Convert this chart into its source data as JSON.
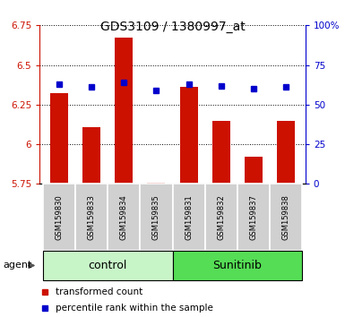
{
  "title": "GDS3109 / 1380997_at",
  "samples": [
    "GSM159830",
    "GSM159833",
    "GSM159834",
    "GSM159835",
    "GSM159831",
    "GSM159832",
    "GSM159837",
    "GSM159838"
  ],
  "red_values": [
    6.32,
    6.11,
    6.67,
    5.76,
    6.36,
    6.15,
    5.92,
    6.15
  ],
  "blue_values": [
    63,
    61,
    64,
    59,
    63,
    62,
    60,
    61
  ],
  "groups": [
    {
      "label": "control",
      "indices": [
        0,
        1,
        2,
        3
      ],
      "color": "#c8f5c8",
      "edge_color": "#000000"
    },
    {
      "label": "Sunitinib",
      "indices": [
        4,
        5,
        6,
        7
      ],
      "color": "#55dd55",
      "edge_color": "#000000"
    }
  ],
  "ylim_left": [
    5.75,
    6.75
  ],
  "ylim_right": [
    0,
    100
  ],
  "yticks_left": [
    5.75,
    6.0,
    6.25,
    6.5,
    6.75
  ],
  "ytick_labels_left": [
    "5.75",
    "6",
    "6.25",
    "6.5",
    "6.75"
  ],
  "yticks_right": [
    0,
    25,
    50,
    75,
    100
  ],
  "ytick_labels_right": [
    "0",
    "25",
    "50",
    "75",
    "100%"
  ],
  "bar_color": "#cc1100",
  "dot_color": "#0000cc",
  "bar_bottom": 5.75,
  "agent_label": "agent",
  "legend_red": "transformed count",
  "legend_blue": "percentile rank within the sample",
  "left_axis_color": "#cc1100",
  "right_axis_color": "#0000cc",
  "title_fontsize": 10,
  "tick_fontsize": 7.5,
  "sample_fontsize": 6,
  "group_fontsize": 9,
  "legend_fontsize": 7.5
}
